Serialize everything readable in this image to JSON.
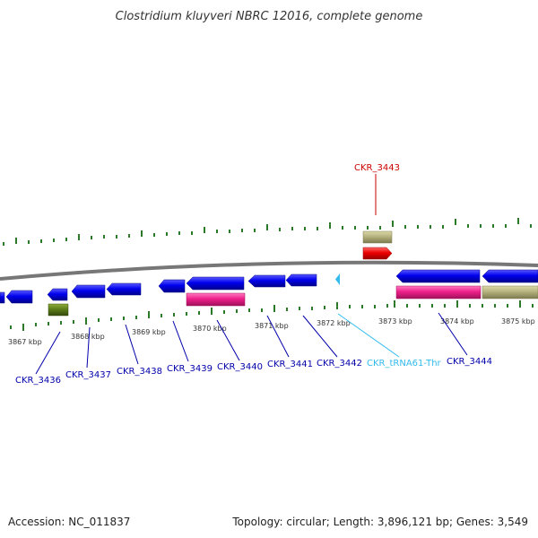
{
  "title": "Clostridium kluyveri NBRC 12016, complete genome",
  "footer": {
    "accession": "Accession: NC_011837",
    "topology": "Topology: circular; Length: 3,896,121 bp; Genes: 3,549"
  },
  "colors": {
    "cds": "#0000dd",
    "rna": "#ee1f8a",
    "olive": "#b5b27e",
    "green": "#5c7d1a",
    "red_gene": "#ee0000",
    "trna": "#33bbee",
    "backbone": "#777777",
    "tick": "#2a7a2a",
    "label_blue": "#0000aa",
    "label_red": "#cc0000",
    "label_cyan": "#33bbee"
  },
  "scale_labels": [
    "3867 kbp",
    "3868 kbp",
    "3869 kbp",
    "3870 kbp",
    "3871 kbp",
    "3872 kbp",
    "3873 kbp",
    "3874 kbp",
    "3875 kbp"
  ],
  "gene_labels": [
    {
      "name": "CKR_3436",
      "color": "blue"
    },
    {
      "name": "CKR_3437",
      "color": "blue"
    },
    {
      "name": "CKR_3438",
      "color": "blue"
    },
    {
      "name": "CKR_3439",
      "color": "blue"
    },
    {
      "name": "CKR_3440",
      "color": "blue"
    },
    {
      "name": "CKR_3441",
      "color": "blue"
    },
    {
      "name": "CKR_3442",
      "color": "blue"
    },
    {
      "name": "CKR_tRNA61-Thr",
      "color": "cyan"
    },
    {
      "name": "CKR_3444",
      "color": "blue"
    },
    {
      "name": "CKR_3443",
      "color": "red"
    }
  ]
}
